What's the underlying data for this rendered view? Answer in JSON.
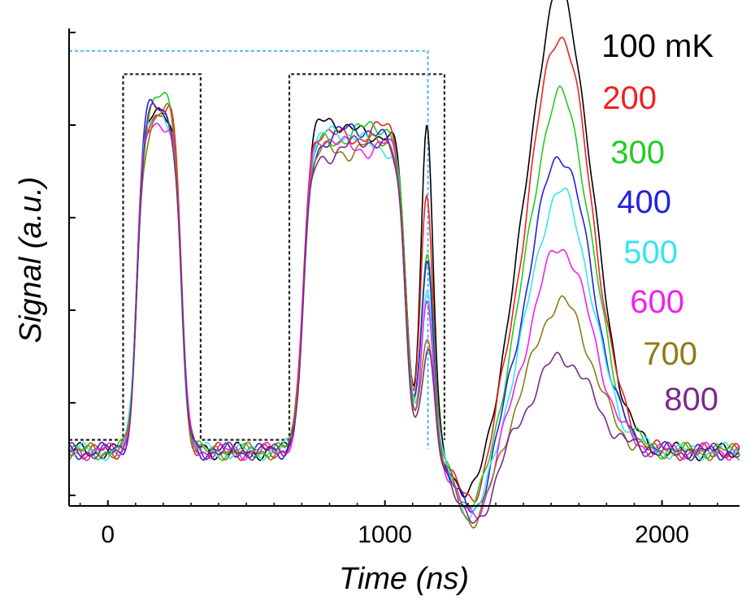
{
  "chart_data": {
    "type": "line",
    "title": "",
    "xlabel": "Time (ns)",
    "ylabel": "Signal (a.u.)",
    "xlim": [
      -140,
      2280
    ],
    "ylim": [
      0,
      1
    ],
    "x_ticks": [
      0,
      1000,
      2000
    ],
    "grid": false,
    "legend": "right",
    "pulse_level": {
      "low": 0.12,
      "high": 0.91,
      "color": "#222222"
    },
    "pulses": [
      [
        55,
        335
      ],
      [
        655,
        1215
      ]
    ],
    "marker": {
      "x": 1155,
      "y": 0.96,
      "color": "#4ab8e8"
    },
    "series": [
      {
        "name": "100 mK",
        "color": "#000000",
        "read_peak": 0.61,
        "p_bump": 0.42,
        "res_peak": 1.0,
        "sh_level": 0.13
      },
      {
        "name": "200",
        "color": "#ee2222",
        "read_peak": 0.46,
        "p_bump": 0.4,
        "res_peak": 0.91,
        "sh_level": 0.1
      },
      {
        "name": "300",
        "color": "#22cc22",
        "read_peak": 0.35,
        "p_bump": 0.38,
        "res_peak": 0.78,
        "sh_level": 0.08
      },
      {
        "name": "400",
        "color": "#2222dd",
        "read_peak": 0.31,
        "p_bump": 0.37,
        "res_peak": 0.65,
        "sh_level": 0.06
      },
      {
        "name": "500",
        "color": "#33e6ef",
        "read_peak": 0.26,
        "p_bump": 0.36,
        "res_peak": 0.57,
        "sh_level": 0.05
      },
      {
        "name": "600",
        "color": "#ee22ee",
        "read_peak": 0.22,
        "p_bump": 0.35,
        "res_peak": 0.45,
        "sh_level": 0.04
      },
      {
        "name": "700",
        "color": "#8f7a14",
        "read_peak": 0.17,
        "p_bump": 0.34,
        "res_peak": 0.33,
        "sh_level": 0.03
      },
      {
        "name": "800",
        "color": "#7a2a8c",
        "read_peak": 0.12,
        "p_bump": 0.33,
        "res_peak": 0.21,
        "sh_level": 0.02
      }
    ]
  }
}
